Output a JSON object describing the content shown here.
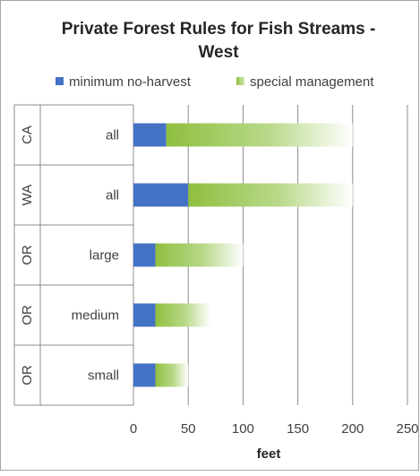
{
  "chart_data": {
    "type": "bar",
    "orientation": "horizontal",
    "stacked": true,
    "title": "Private Forest Rules for Fish Streams - West",
    "xlabel": "feet",
    "ylabel": "",
    "xlim": [
      0,
      250
    ],
    "x_ticks": [
      0,
      50,
      100,
      150,
      200,
      250
    ],
    "grid": "vertical",
    "legend_position": "top",
    "categories": [
      {
        "state": "CA",
        "label": "all"
      },
      {
        "state": "WA",
        "label": "all"
      },
      {
        "state": "OR",
        "label": "large"
      },
      {
        "state": "OR",
        "label": "medium"
      },
      {
        "state": "OR",
        "label": "small"
      }
    ],
    "series": [
      {
        "name": "minimum no-harvest",
        "color": "#4472c4",
        "values": [
          30,
          50,
          20,
          20,
          20
        ]
      },
      {
        "name": "special management",
        "color": "#8fbf3f",
        "values": [
          170,
          150,
          80,
          50,
          30
        ]
      }
    ]
  }
}
